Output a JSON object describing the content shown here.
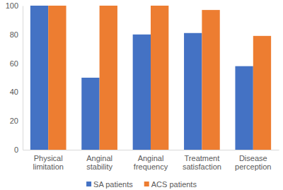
{
  "chart_data": {
    "type": "bar",
    "categories": [
      "Physical limitation",
      "Anginal stability",
      "Anginal frequency",
      "Treatment satisfaction",
      "Disease perception"
    ],
    "series": [
      {
        "name": "SA patients",
        "color": "#4472c4",
        "values": [
          100,
          50,
          80,
          81,
          58
        ]
      },
      {
        "name": "ACS patients",
        "color": "#ed7d31",
        "values": [
          100,
          100,
          100,
          97,
          79
        ]
      }
    ],
    "ylim": [
      0,
      100
    ],
    "yticks": [
      0,
      20,
      40,
      60,
      80,
      100
    ],
    "grid": false,
    "legend": "bottom"
  }
}
